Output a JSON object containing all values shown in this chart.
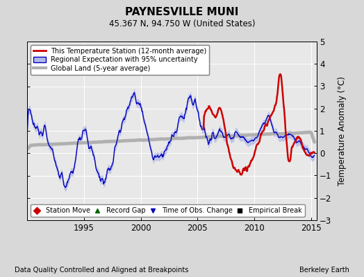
{
  "title": "PAYNESVILLE MUNI",
  "subtitle": "45.367 N, 94.750 W (United States)",
  "ylabel": "Temperature Anomaly (°C)",
  "xlabel_left": "Data Quality Controlled and Aligned at Breakpoints",
  "xlabel_right": "Berkeley Earth",
  "ylim": [
    -3,
    5
  ],
  "xlim_start": 1990.0,
  "xlim_end": 2015.5,
  "xticks": [
    1995,
    2000,
    2005,
    2010,
    2015
  ],
  "yticks": [
    -3,
    -2,
    -1,
    0,
    1,
    2,
    3,
    4,
    5
  ],
  "bg_color": "#d8d8d8",
  "plot_bg_color": "#e8e8e8",
  "grid_color": "#ffffff",
  "red_line_color": "#cc0000",
  "blue_line_color": "#0000bb",
  "blue_fill_color": "#b0b8e8",
  "gray_line_color": "#b0b0b0",
  "legend1_items": [
    {
      "label": "This Temperature Station (12-month average)",
      "color": "#cc0000",
      "lw": 2.0
    },
    {
      "label": "Regional Expectation with 95% uncertainty",
      "color": "#0000bb",
      "lw": 1.2
    },
    {
      "label": "Global Land (5-year average)",
      "color": "#b0b0b0",
      "lw": 3.0
    }
  ],
  "legend2_items": [
    {
      "label": "Station Move",
      "marker": "D",
      "color": "#cc0000"
    },
    {
      "label": "Record Gap",
      "marker": "^",
      "color": "#006600"
    },
    {
      "label": "Time of Obs. Change",
      "marker": "v",
      "color": "#0000bb"
    },
    {
      "label": "Empirical Break",
      "marker": "s",
      "color": "#000000"
    }
  ]
}
